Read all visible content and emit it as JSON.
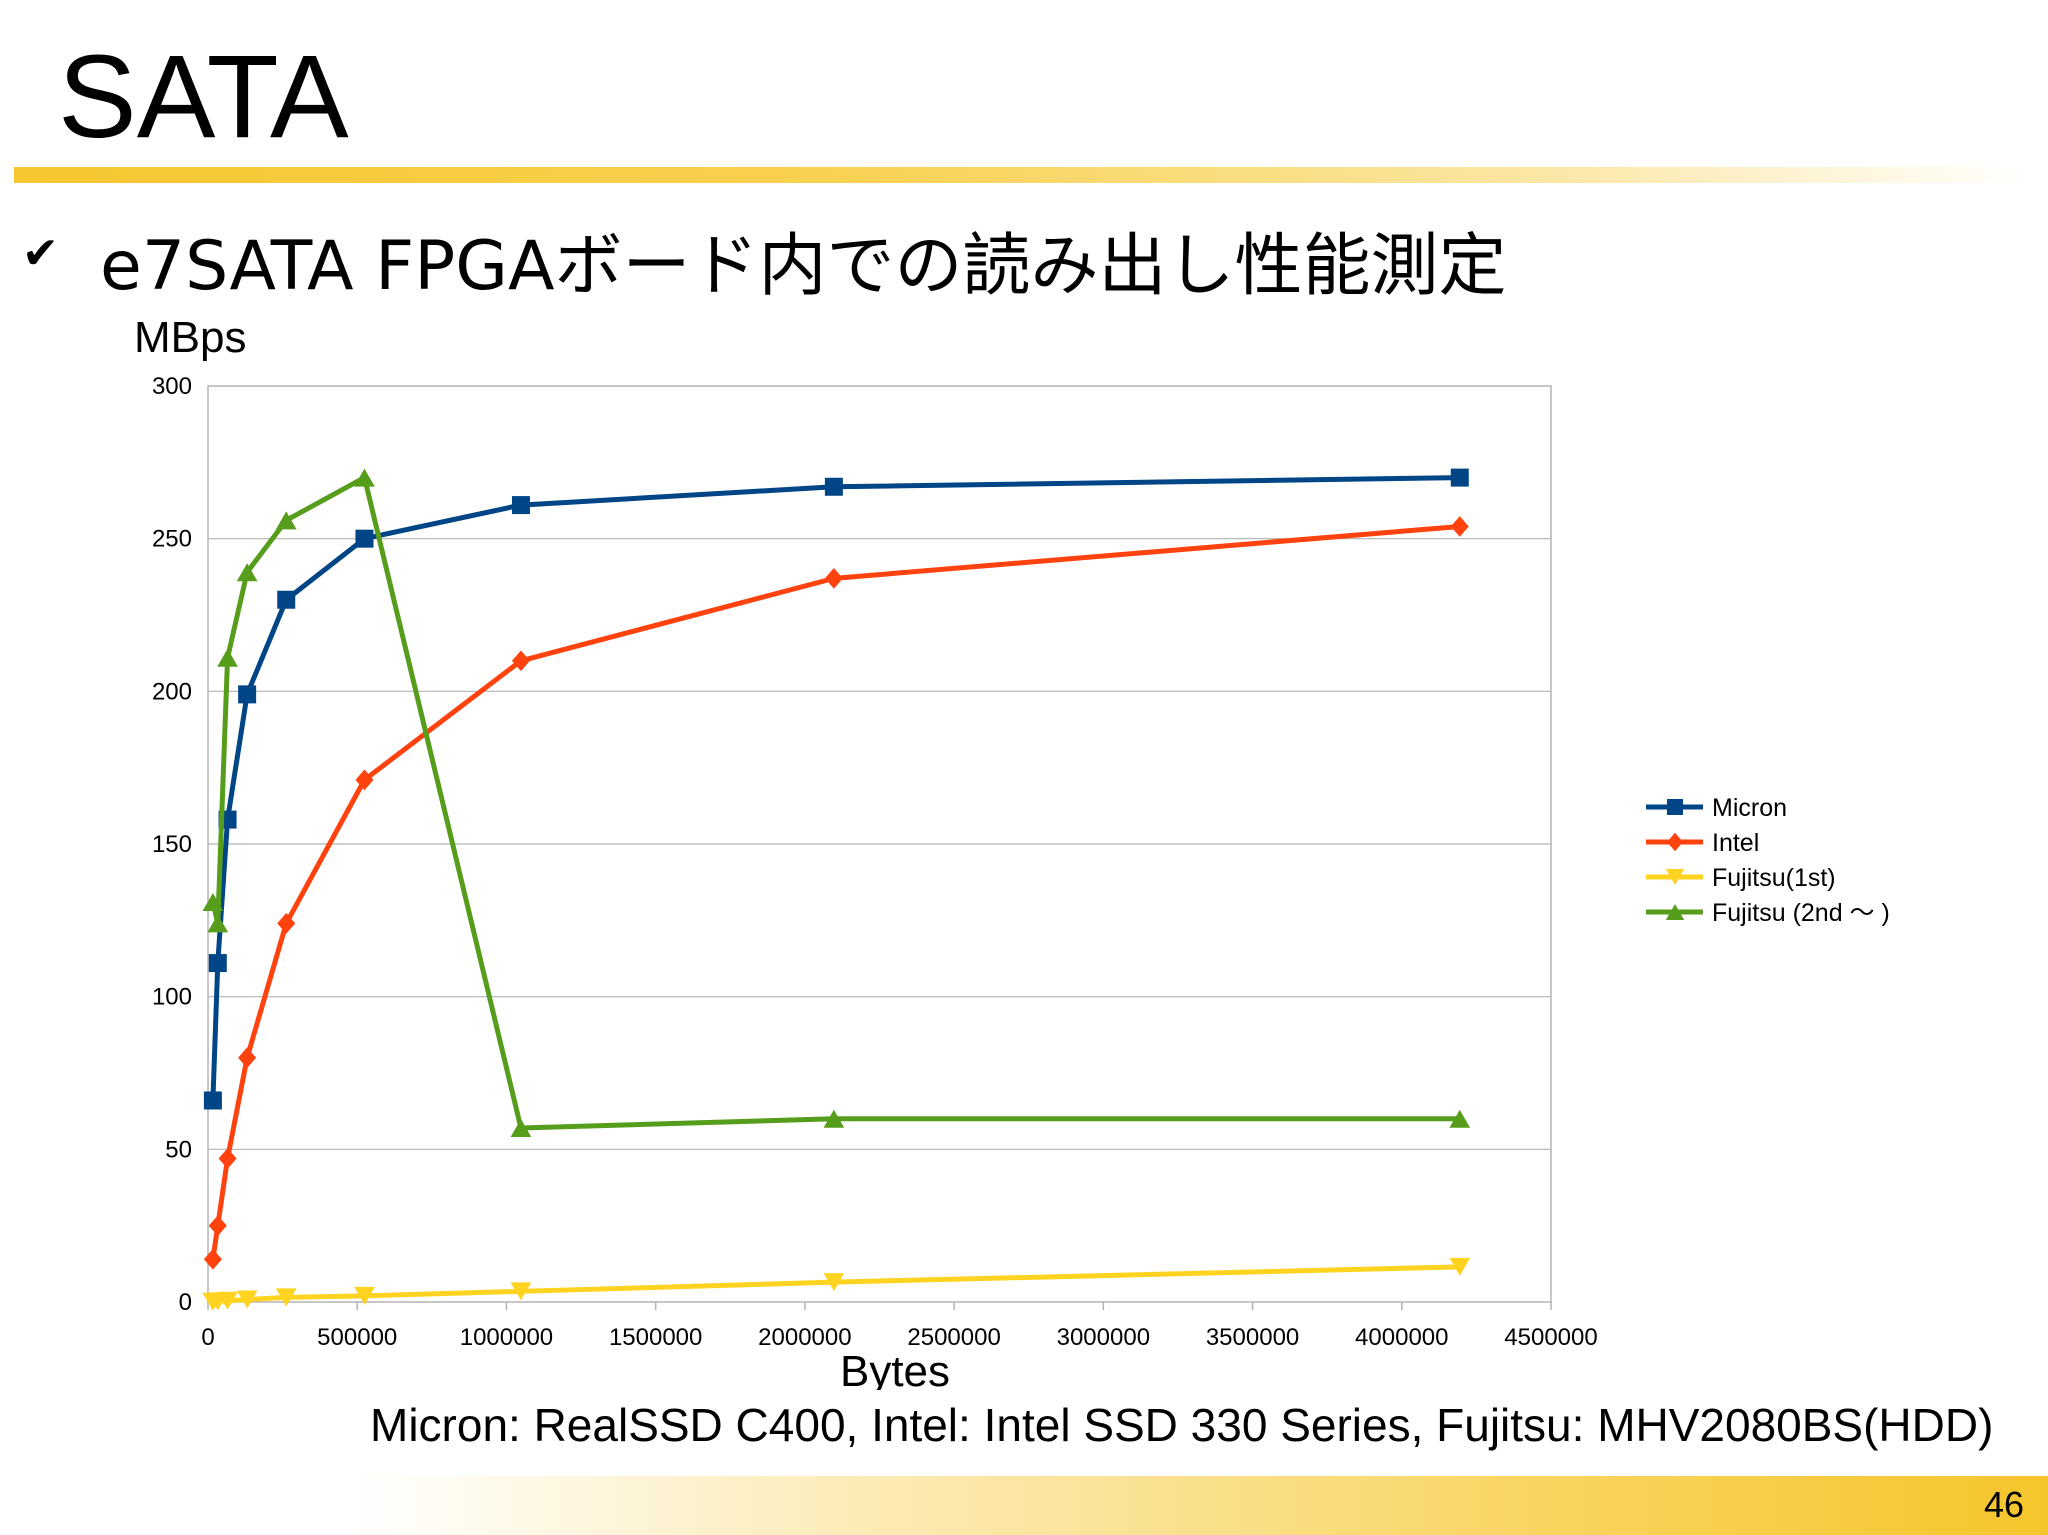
{
  "slide": {
    "title": "SATA",
    "bullet_icon": "checkmark-icon",
    "bullet": "e7SATA FPGAボード内での読み出し性能測定",
    "footnote": "Micron: RealSSD C400, Intel: Intel SSD 330 Series, Fujitsu: MHV2080BS(HDD)",
    "page_number": "46"
  },
  "colors": {
    "micron": "#004586",
    "intel": "#ff420e",
    "fujitsu_1st": "#ffd320",
    "fujitsu_2nd": "#579d1c",
    "accent_gold": "#f6c630"
  },
  "chart_data": {
    "type": "line",
    "title": "",
    "xlabel": "Bytes",
    "ylabel": "MBps",
    "xlim": [
      0,
      4500000
    ],
    "ylim": [
      0,
      300
    ],
    "x_ticks": [
      "0",
      "500000",
      "1000000",
      "1500000",
      "2000000",
      "2500000",
      "3000000",
      "3500000",
      "4000000",
      "4500000"
    ],
    "y_ticks": [
      "0",
      "50",
      "100",
      "150",
      "200",
      "250",
      "300"
    ],
    "grid": true,
    "legend_position": "right",
    "x": [
      16384,
      32768,
      65536,
      131072,
      262144,
      524288,
      1048576,
      2097152,
      4194304
    ],
    "series": [
      {
        "name": "Micron",
        "marker": "square",
        "color": "#004586",
        "values": [
          66,
          111,
          158,
          199,
          230,
          250,
          261,
          267,
          270
        ]
      },
      {
        "name": "Intel",
        "marker": "diamond",
        "color": "#ff420e",
        "values": [
          14,
          25,
          47,
          80,
          124,
          171,
          210,
          237,
          254
        ]
      },
      {
        "name": "Fujitsu(1st)",
        "marker": "triangle-down",
        "color": "#ffd320",
        "values": [
          0.1,
          0.2,
          0.4,
          0.8,
          1.5,
          2,
          3.5,
          6.5,
          11.5
        ]
      },
      {
        "name": "Fujitsu (2nd ～ )",
        "marker": "triangle-up",
        "color": "#579d1c",
        "values": [
          131,
          124,
          211,
          239,
          256,
          270,
          57,
          60,
          60
        ]
      }
    ]
  }
}
